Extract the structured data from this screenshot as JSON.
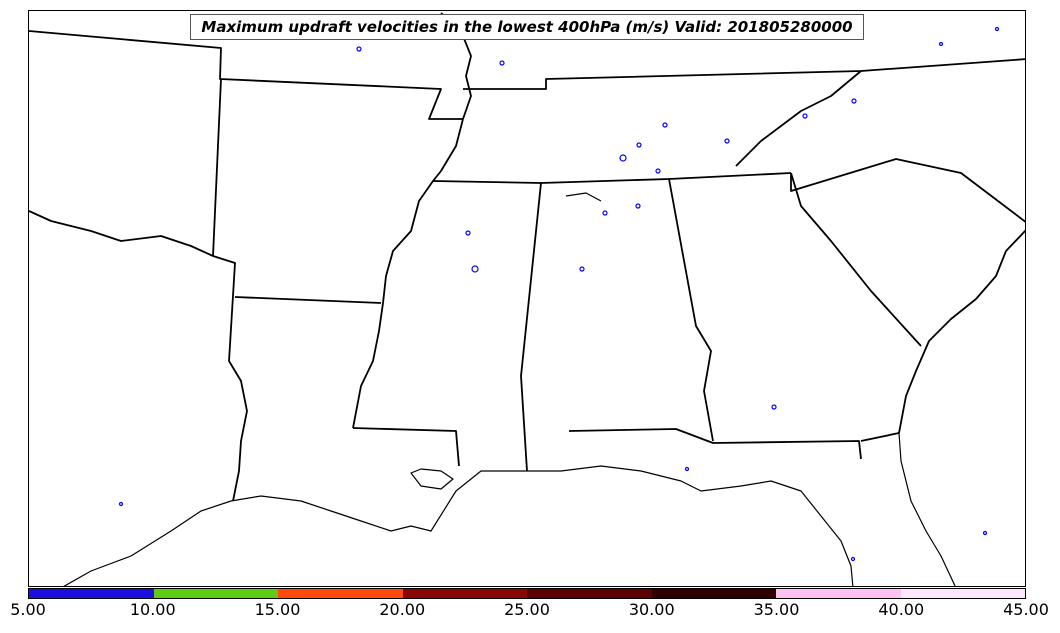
{
  "title": "Maximum updraft velocities in the lowest 400hPa (m/s) Valid: 201805280000",
  "colorbar": {
    "ticks": [
      "5.00",
      "10.00",
      "15.00",
      "20.00",
      "25.00",
      "30.00",
      "35.00",
      "40.00",
      "45.00"
    ],
    "colors": [
      "#1a0ee0",
      "#5ccd12",
      "#ff4a0a",
      "#8c0505",
      "#5c0000",
      "#300000",
      "#ffc2f2",
      "#ffe6ff"
    ]
  },
  "map": {
    "region": "Southeastern United States",
    "contour_color": "#0000ff",
    "outline_color": "#000000"
  }
}
